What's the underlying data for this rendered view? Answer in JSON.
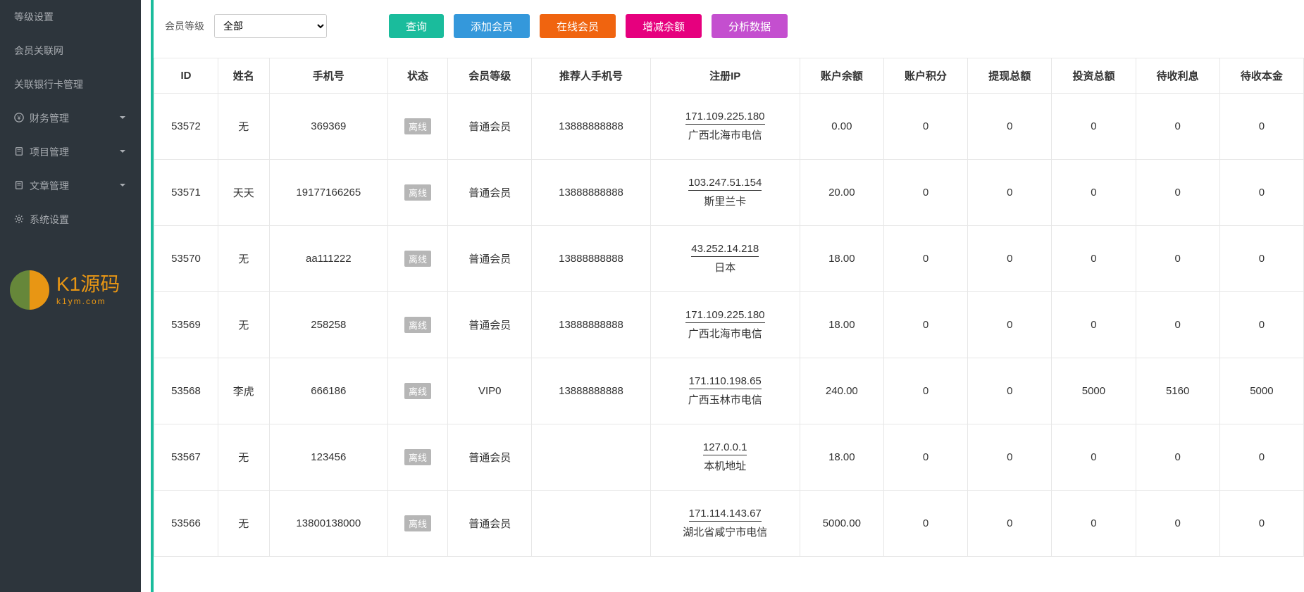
{
  "sidebar": {
    "plain_items": [
      "等级设置",
      "会员关联网",
      "关联银行卡管理"
    ],
    "group_items": [
      {
        "icon": "yen-icon",
        "label": "财务管理"
      },
      {
        "icon": "doc-icon",
        "label": "项目管理"
      },
      {
        "icon": "doc-icon",
        "label": "文章管理"
      },
      {
        "icon": "gear-icon",
        "label": "系统设置"
      }
    ]
  },
  "filter": {
    "label": "会员等级",
    "selected": "全部",
    "buttons": {
      "query": "查询",
      "add_member": "添加会员",
      "online_member": "在线会员",
      "adjust_balance": "增减余额",
      "analyze": "分析数据"
    },
    "button_colors": {
      "teal": "#1abc9c",
      "blue": "#3498db",
      "orange": "#f0640f",
      "pink": "#e6007e",
      "purple": "#c44fcf"
    }
  },
  "table": {
    "columns": [
      "ID",
      "姓名",
      "手机号",
      "状态",
      "会员等级",
      "推荐人手机号",
      "注册IP",
      "账户余额",
      "账户积分",
      "提现总额",
      "投资总额",
      "待收利息",
      "待收本金"
    ],
    "status_offline": "离线",
    "rows": [
      {
        "id": "53572",
        "name": "无",
        "phone": "369369",
        "level": "普通会员",
        "ref": "13888888888",
        "ip": "171.109.225.180",
        "loc": "广西北海市电信",
        "balance": "0.00",
        "points": "0",
        "withdraw": "0",
        "invest": "0",
        "interest": "0",
        "principal": "0"
      },
      {
        "id": "53571",
        "name": "天天",
        "phone": "19177166265",
        "level": "普通会员",
        "ref": "13888888888",
        "ip": "103.247.51.154",
        "loc": "斯里兰卡",
        "balance": "20.00",
        "points": "0",
        "withdraw": "0",
        "invest": "0",
        "interest": "0",
        "principal": "0"
      },
      {
        "id": "53570",
        "name": "无",
        "phone": "aa111222",
        "level": "普通会员",
        "ref": "13888888888",
        "ip": "43.252.14.218",
        "loc": "日本",
        "balance": "18.00",
        "points": "0",
        "withdraw": "0",
        "invest": "0",
        "interest": "0",
        "principal": "0"
      },
      {
        "id": "53569",
        "name": "无",
        "phone": "258258",
        "level": "普通会员",
        "ref": "13888888888",
        "ip": "171.109.225.180",
        "loc": "广西北海市电信",
        "balance": "18.00",
        "points": "0",
        "withdraw": "0",
        "invest": "0",
        "interest": "0",
        "principal": "0"
      },
      {
        "id": "53568",
        "name": "李虎",
        "phone": "666186",
        "level": "VIP0",
        "ref": "13888888888",
        "ip": "171.110.198.65",
        "loc": "广西玉林市电信",
        "balance": "240.00",
        "points": "0",
        "withdraw": "0",
        "invest": "5000",
        "interest": "5160",
        "principal": "5000"
      },
      {
        "id": "53567",
        "name": "无",
        "phone": "123456",
        "level": "普通会员",
        "ref": "",
        "ip": "127.0.0.1",
        "loc": "本机地址",
        "balance": "18.00",
        "points": "0",
        "withdraw": "0",
        "invest": "0",
        "interest": "0",
        "principal": "0"
      },
      {
        "id": "53566",
        "name": "无",
        "phone": "13800138000",
        "level": "普通会员",
        "ref": "",
        "ip": "171.114.143.67",
        "loc": "湖北省咸宁市电信",
        "balance": "5000.00",
        "points": "0",
        "withdraw": "0",
        "invest": "0",
        "interest": "0",
        "principal": "0"
      }
    ]
  },
  "watermark": {
    "line1": "K1源码",
    "line2": "k1ym.com"
  }
}
